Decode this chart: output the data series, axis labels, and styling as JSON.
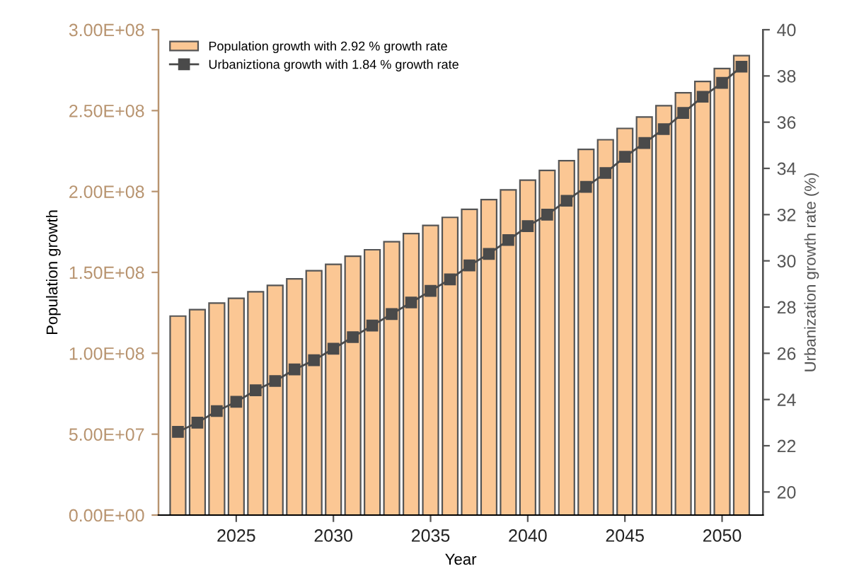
{
  "chart_data": {
    "type": "bar",
    "xlabel": "Year",
    "ylabel": "Population growth",
    "y2label": "Urbanization growth rate (%)",
    "x": [
      2022,
      2023,
      2024,
      2025,
      2026,
      2027,
      2028,
      2029,
      2030,
      2031,
      2032,
      2033,
      2034,
      2035,
      2036,
      2037,
      2038,
      2039,
      2040,
      2041,
      2042,
      2043,
      2044,
      2045,
      2046,
      2047,
      2048,
      2049,
      2050,
      2051
    ],
    "series": [
      {
        "name": "Population growth with 2.92 % growth rate",
        "color": "#fbc794",
        "values": [
          123000000,
          127000000,
          131000000,
          134000000,
          138000000,
          142000000,
          146000000,
          151000000,
          155000000,
          160000000,
          164000000,
          169000000,
          174000000,
          179000000,
          184000000,
          189000000,
          195000000,
          201000000,
          207000000,
          213000000,
          219000000,
          226000000,
          232000000,
          239000000,
          246000000,
          253000000,
          261000000,
          268000000,
          276000000,
          284000000
        ]
      },
      {
        "name": "Urbaniztiona growth with 1.84 % growth rate",
        "type": "line",
        "axis": "y2",
        "color": "#4a4a4a",
        "marker": "square",
        "values": [
          22.6,
          23.0,
          23.5,
          23.9,
          24.4,
          24.8,
          25.3,
          25.7,
          26.2,
          26.7,
          27.2,
          27.7,
          28.2,
          28.7,
          29.2,
          29.8,
          30.3,
          30.9,
          31.5,
          32.0,
          32.6,
          33.2,
          33.8,
          34.5,
          35.1,
          35.7,
          36.4,
          37.1,
          37.7,
          38.4
        ]
      }
    ],
    "xlim": [
      2021,
      2052.1
    ],
    "xticks": [
      2025,
      2030,
      2035,
      2040,
      2045,
      2050
    ],
    "ylim": [
      0,
      300000000
    ],
    "yticks": [
      {
        "value": 0,
        "label": "0.00E+00"
      },
      {
        "value": 50000000,
        "label": "5.00E+07"
      },
      {
        "value": 100000000,
        "label": "1.00E+08"
      },
      {
        "value": 150000000,
        "label": "1.50E+08"
      },
      {
        "value": 200000000,
        "label": "2.00E+08"
      },
      {
        "value": 250000000,
        "label": "2.50E+08"
      },
      {
        "value": 300000000,
        "label": "3.00E+08"
      }
    ],
    "y2lim": [
      19,
      40
    ],
    "y2ticks": [
      20,
      22,
      24,
      26,
      28,
      30,
      32,
      34,
      36,
      38,
      40
    ],
    "grid": false,
    "legend": "top left"
  }
}
